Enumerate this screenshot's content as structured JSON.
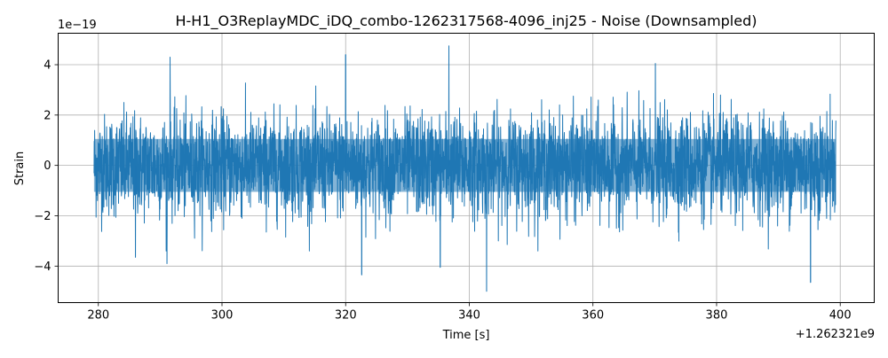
{
  "chart_data": {
    "type": "line",
    "title": "H-H1_O3ReplayMDC_iDQ_combo-1262317568-4096_inj25 - Noise (Downsampled)",
    "xlabel": "Time [s]",
    "ylabel": "Strain",
    "x_offset_label": "+1.262321e9",
    "y_scale_label": "1e−19",
    "xlim": [
      1262321273.5,
      1262321405.5
    ],
    "ylim": [
      -5.45e-19,
      5.25e-19
    ],
    "x_ticks": [
      1262321280,
      1262321300,
      1262321320,
      1262321340,
      1262321360,
      1262321380,
      1262321400
    ],
    "x_tick_labels": [
      "280",
      "300",
      "320",
      "340",
      "360",
      "380",
      "400"
    ],
    "y_ticks": [
      -4e-19,
      -2e-19,
      0,
      2e-19,
      4e-19
    ],
    "y_tick_labels": [
      "−4",
      "−2",
      "0",
      "2",
      "4"
    ],
    "grid": true,
    "series": [
      {
        "color": "#1f77b4",
        "x_start": 1262321279.3,
        "x_end": 1262321399.3,
        "typical_amplitude": 1e-19,
        "peaks": [
          {
            "x": 1262321291.6,
            "y": 4.3e-19
          },
          {
            "x": 1262321320.0,
            "y": 4.4e-19
          },
          {
            "x": 1262321336.7,
            "y": 4.75e-19
          },
          {
            "x": 1262321370.1,
            "y": 4.05e-19
          },
          {
            "x": 1262321342.8,
            "y": -5e-19
          },
          {
            "x": 1262321395.2,
            "y": -4.65e-19
          },
          {
            "x": 1262321322.6,
            "y": -4.35e-19
          },
          {
            "x": 1262321335.3,
            "y": -4.05e-19
          },
          {
            "x": 1262321286.0,
            "y": -3.65e-19
          },
          {
            "x": 1262321291.1,
            "y": -3.9e-19
          }
        ]
      }
    ]
  }
}
